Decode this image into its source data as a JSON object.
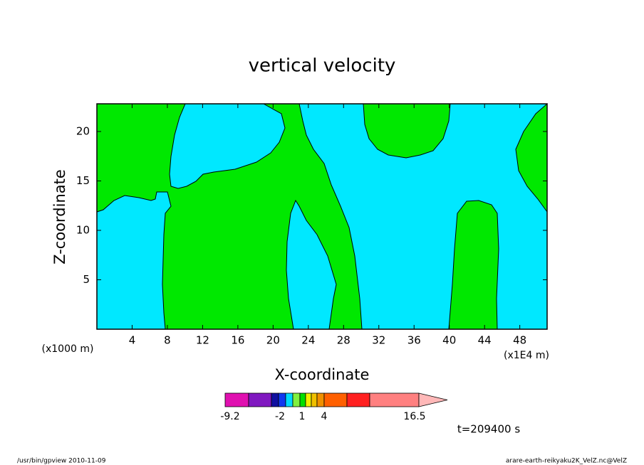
{
  "chart_data": {
    "type": "contour",
    "title": "vertical velocity",
    "xlabel": "X-coordinate",
    "ylabel": "Z-coordinate",
    "x_unit_left": "(x1000 m)",
    "x_unit_right": "(x1E4 m)",
    "xlim": [
      0,
      51.1
    ],
    "xticks": [
      4,
      8,
      12,
      16,
      20,
      24,
      28,
      32,
      36,
      40,
      44,
      48
    ],
    "ylim": [
      0,
      22.8
    ],
    "yticks": [
      5,
      10,
      15,
      20
    ],
    "fill_colors": [
      "#00e8ff",
      "#00e800"
    ],
    "colorbar": {
      "colors": [
        "#e010b0",
        "#8018c0",
        "#1010a0",
        "#1038f0",
        "#00d8ff",
        "#80f040",
        "#00e000",
        "#f0f000",
        "#f0c000",
        "#f09000",
        "#ff6000",
        "#ff2020",
        "#ff8080",
        "#ffb8b8"
      ],
      "labels": [
        -9.2,
        -2,
        1,
        4,
        16.5
      ]
    },
    "time_label": "t=209400 s",
    "footer_left": "/usr/bin/gpview   2010-11-09",
    "footer_right": "arare-earth-reikyaku2K_VelZ.nc@VelZ"
  }
}
